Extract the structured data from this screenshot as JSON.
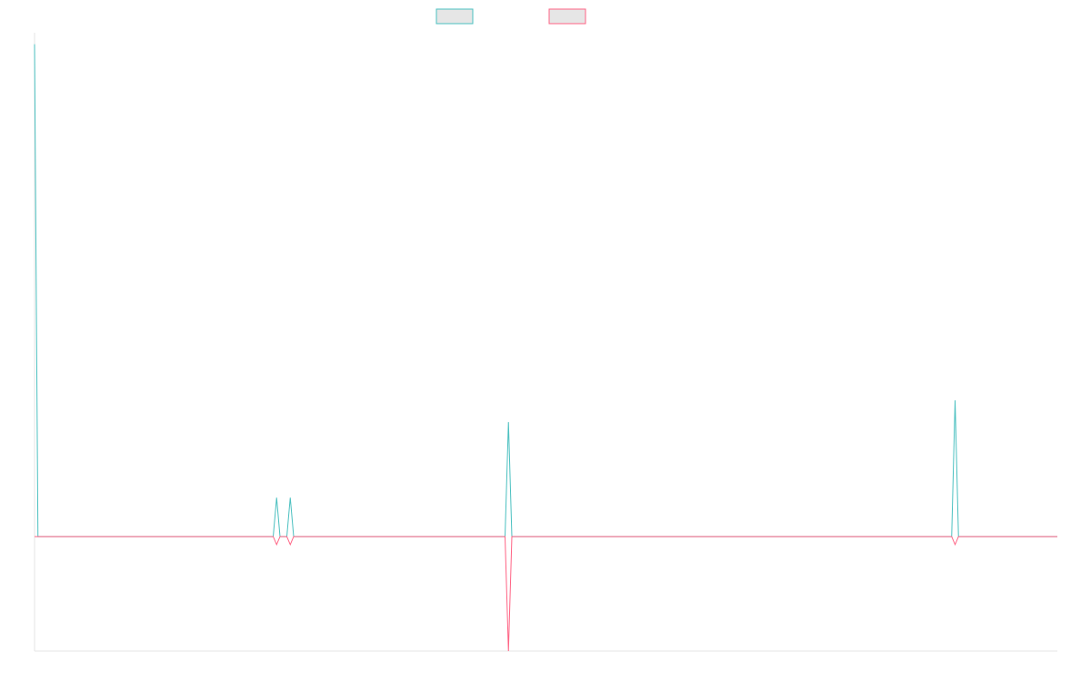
{
  "chart_data": {
    "type": "line",
    "x": [
      0,
      1,
      2,
      3,
      4,
      5,
      6,
      7,
      8,
      9,
      10,
      11,
      12,
      13,
      14,
      15,
      16,
      17,
      18,
      19,
      20,
      21,
      22,
      23,
      24,
      25,
      26,
      27,
      28,
      29,
      30,
      31,
      32,
      33,
      34,
      35,
      36,
      37,
      38,
      39,
      40,
      41,
      42,
      43,
      44,
      45,
      46,
      47,
      48,
      49,
      50,
      51,
      52,
      53,
      54,
      55,
      56,
      57,
      58,
      59,
      60,
      61,
      62,
      63,
      64,
      65,
      66,
      67,
      68,
      69,
      70,
      71,
      72,
      73,
      74,
      75,
      76,
      77,
      78,
      79,
      80,
      81,
      82,
      83,
      84,
      85,
      86,
      87,
      88,
      89,
      90,
      91,
      92,
      93,
      94,
      95,
      96,
      97,
      98,
      99,
      100,
      101,
      102,
      103,
      104,
      105,
      106,
      107,
      108,
      109,
      110,
      111,
      112,
      113,
      114,
      115,
      116,
      117,
      118,
      119,
      120,
      121,
      122,
      123,
      124,
      125,
      126,
      127,
      128,
      129,
      130,
      131,
      132,
      133,
      134,
      135,
      136,
      137,
      138,
      139,
      140,
      141,
      142,
      143,
      144,
      145,
      146,
      147,
      148,
      149,
      150,
      151,
      152,
      153,
      154,
      155,
      156,
      157,
      158,
      159,
      160,
      161,
      162,
      163,
      164,
      165,
      166,
      167,
      168,
      169,
      170,
      171,
      172,
      173,
      174,
      175,
      176,
      177,
      178,
      179,
      180,
      181,
      182,
      183,
      184,
      185,
      186,
      187,
      188,
      189,
      190,
      191,
      192,
      193,
      194,
      195,
      196,
      197,
      198,
      199,
      200,
      201,
      202,
      203,
      204,
      205,
      206,
      207,
      208,
      209,
      210,
      211,
      212,
      213,
      214,
      215,
      216,
      217,
      218,
      219,
      220,
      221,
      222,
      223,
      224,
      225,
      226,
      227,
      228,
      229,
      230,
      231,
      232,
      233,
      234,
      235,
      236,
      237,
      238,
      239,
      240,
      241,
      242,
      243,
      244,
      245,
      246,
      247,
      248,
      249,
      250,
      251,
      252,
      253,
      254,
      255,
      256,
      257,
      258,
      259,
      260,
      261,
      262,
      263,
      264,
      265,
      266,
      267,
      268,
      269,
      270,
      271,
      272,
      273,
      274,
      275,
      276,
      277,
      278,
      279,
      280,
      281,
      282,
      283,
      284,
      285,
      286,
      287,
      288,
      289,
      290,
      291,
      292,
      293,
      294,
      295,
      296,
      297,
      298,
      299,
      300
    ],
    "series": [
      {
        "color": "#4bc0c0",
        "spikes": [
          [
            0,
            43
          ],
          [
            71,
            3.4
          ],
          [
            75,
            3.4
          ],
          [
            139,
            10
          ],
          [
            270,
            11.9
          ]
        ]
      },
      {
        "color": "#ff6384",
        "spikes": [
          [
            71,
            -0.7
          ],
          [
            75,
            -0.7
          ],
          [
            139,
            -10
          ],
          [
            270,
            -0.7
          ]
        ]
      }
    ],
    "ylim": [
      -10,
      44
    ],
    "legend": [
      {
        "label": "",
        "border": "#4bc0c0",
        "fill": "#e6e6e6"
      },
      {
        "label": "",
        "border": "#ff6384",
        "fill": "#e6e6e6"
      }
    ],
    "legend_placement": "top-center",
    "grid": false
  }
}
